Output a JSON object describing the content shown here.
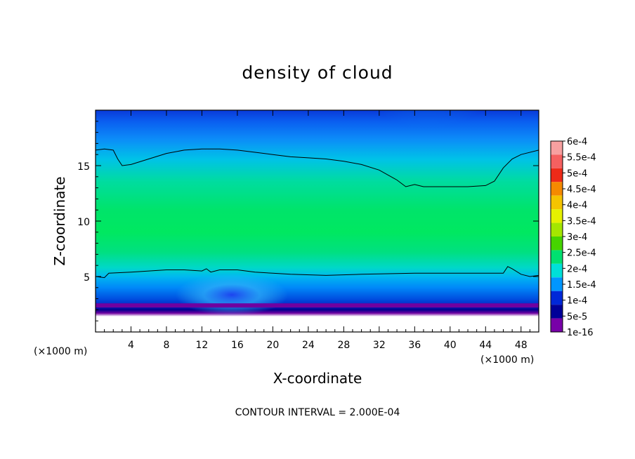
{
  "chart_data": {
    "type": "heatmap",
    "title": "density of cloud",
    "xlabel": "X-coordinate",
    "ylabel": "Z-coordinate",
    "x_unit": "(×1000 m)",
    "y_unit": "(×1000 m)",
    "xlim": [
      0,
      50
    ],
    "ylim": [
      0,
      20
    ],
    "x_ticks": [
      4,
      8,
      12,
      16,
      20,
      24,
      28,
      32,
      36,
      40,
      44,
      48
    ],
    "y_ticks": [
      5,
      10,
      15
    ],
    "colorbar": {
      "labels": [
        "6e-4",
        "5.5e-4",
        "5e-4",
        "4.5e-4",
        "4e-4",
        "3.5e-4",
        "3e-4",
        "2.5e-4",
        "2e-4",
        "1.5e-4",
        "1e-4",
        "5e-5",
        "1e-16"
      ],
      "colors": [
        "#f7a0a0",
        "#f56060",
        "#ee2a18",
        "#f58a00",
        "#f5c400",
        "#e6f000",
        "#a4e600",
        "#46d400",
        "#00e070",
        "#00e0d8",
        "#0096ff",
        "#0028d8",
        "#000098",
        "#7800a8"
      ]
    },
    "contour_interval": "CONTOUR INTERVAL = 2.000E-04",
    "contour_upper_z": [
      [
        0,
        16.4
      ],
      [
        1,
        16.5
      ],
      [
        2,
        16.4
      ],
      [
        2.5,
        15.6
      ],
      [
        3,
        15.0
      ],
      [
        4,
        15.1
      ],
      [
        6,
        15.6
      ],
      [
        8,
        16.1
      ],
      [
        10,
        16.4
      ],
      [
        12,
        16.5
      ],
      [
        14,
        16.5
      ],
      [
        16,
        16.4
      ],
      [
        18,
        16.2
      ],
      [
        20,
        16.0
      ],
      [
        22,
        15.8
      ],
      [
        24,
        15.7
      ],
      [
        26,
        15.6
      ],
      [
        28,
        15.4
      ],
      [
        30,
        15.1
      ],
      [
        32,
        14.6
      ],
      [
        34,
        13.7
      ],
      [
        35,
        13.1
      ],
      [
        36,
        13.3
      ],
      [
        37,
        13.1
      ],
      [
        38,
        13.1
      ],
      [
        40,
        13.1
      ],
      [
        42,
        13.1
      ],
      [
        44,
        13.2
      ],
      [
        45,
        13.6
      ],
      [
        46,
        14.8
      ],
      [
        47,
        15.6
      ],
      [
        48,
        16.0
      ],
      [
        50,
        16.4
      ]
    ],
    "contour_lower_z": [
      [
        0,
        5.0
      ],
      [
        1,
        4.9
      ],
      [
        1.5,
        5.3
      ],
      [
        4,
        5.4
      ],
      [
        8,
        5.6
      ],
      [
        10,
        5.6
      ],
      [
        12,
        5.5
      ],
      [
        12.5,
        5.7
      ],
      [
        13,
        5.4
      ],
      [
        14,
        5.6
      ],
      [
        16,
        5.6
      ],
      [
        18,
        5.4
      ],
      [
        20,
        5.3
      ],
      [
        22,
        5.2
      ],
      [
        26,
        5.1
      ],
      [
        30,
        5.2
      ],
      [
        36,
        5.3
      ],
      [
        40,
        5.3
      ],
      [
        44,
        5.3
      ],
      [
        46,
        5.3
      ],
      [
        46.5,
        5.9
      ],
      [
        47,
        5.7
      ],
      [
        48,
        5.2
      ],
      [
        49,
        5.0
      ],
      [
        50,
        5.1
      ]
    ],
    "cloud_base_z": 2.2
  }
}
